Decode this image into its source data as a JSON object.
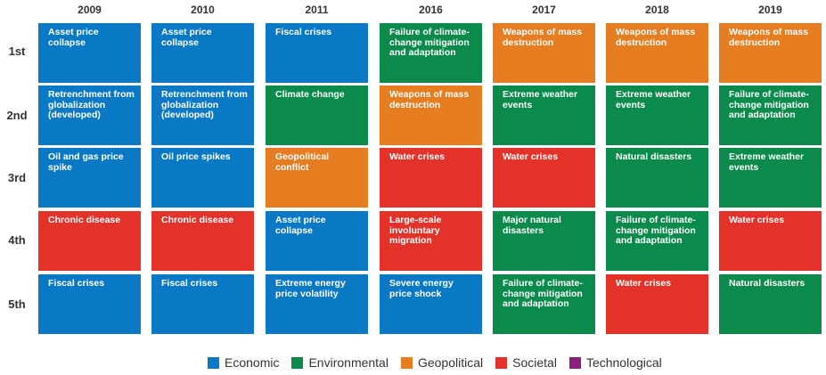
{
  "chart_data": {
    "type": "table",
    "title": "",
    "years": [
      "2009",
      "2010",
      "2011",
      "2016",
      "2017",
      "2018",
      "2019"
    ],
    "ranks": [
      "1st",
      "2nd",
      "3rd",
      "4th",
      "5th"
    ],
    "categories": {
      "Economic": "#0a79c5",
      "Environmental": "#0a8b4c",
      "Geopolitical": "#e77d21",
      "Societal": "#e2322a",
      "Technological": "#8b1f7c"
    },
    "legend": [
      "Economic",
      "Environmental",
      "Geopolitical",
      "Societal",
      "Technological"
    ],
    "grid": [
      [
        {
          "label": "Asset price collapse",
          "category": "Economic"
        },
        {
          "label": "Retrenchment from globalization (developed)",
          "category": "Economic"
        },
        {
          "label": "Oil and gas price spike",
          "category": "Economic"
        },
        {
          "label": "Chronic disease",
          "category": "Societal"
        },
        {
          "label": "Fiscal crises",
          "category": "Economic"
        }
      ],
      [
        {
          "label": "Asset price collapse",
          "category": "Economic"
        },
        {
          "label": "Retrenchment from globalization (developed)",
          "category": "Economic"
        },
        {
          "label": "Oil price spikes",
          "category": "Economic"
        },
        {
          "label": "Chronic disease",
          "category": "Societal"
        },
        {
          "label": "Fiscal crises",
          "category": "Economic"
        }
      ],
      [
        {
          "label": "Fiscal crises",
          "category": "Economic"
        },
        {
          "label": "Climate change",
          "category": "Environmental"
        },
        {
          "label": "Geopolitical conflict",
          "category": "Geopolitical"
        },
        {
          "label": "Asset price collapse",
          "category": "Economic"
        },
        {
          "label": "Extreme energy price volatility",
          "category": "Economic"
        }
      ],
      [
        {
          "label": "Failure of climate-change mitigation and adaptation",
          "category": "Environmental"
        },
        {
          "label": "Weapons of mass destruction",
          "category": "Geopolitical"
        },
        {
          "label": "Water crises",
          "category": "Societal"
        },
        {
          "label": "Large-scale involuntary migration",
          "category": "Societal"
        },
        {
          "label": "Severe energy price shock",
          "category": "Economic"
        }
      ],
      [
        {
          "label": "Weapons of mass destruction",
          "category": "Geopolitical"
        },
        {
          "label": "Extreme weather events",
          "category": "Environmental"
        },
        {
          "label": "Water crises",
          "category": "Societal"
        },
        {
          "label": "Major natural disasters",
          "category": "Environmental"
        },
        {
          "label": "Failure of climate-change mitigation and adaptation",
          "category": "Environmental"
        }
      ],
      [
        {
          "label": "Weapons of mass destruction",
          "category": "Geopolitical"
        },
        {
          "label": "Extreme weather events",
          "category": "Environmental"
        },
        {
          "label": "Natural disasters",
          "category": "Environmental"
        },
        {
          "label": "Failure of climate-change mitigation and adaptation",
          "category": "Environmental"
        },
        {
          "label": "Water crises",
          "category": "Societal"
        }
      ],
      [
        {
          "label": "Weapons of mass destruction",
          "category": "Geopolitical"
        },
        {
          "label": "Failure of climate-change mitigation and adaptation",
          "category": "Environmental"
        },
        {
          "label": "Extreme weather events",
          "category": "Environmental"
        },
        {
          "label": "Water crises",
          "category": "Societal"
        },
        {
          "label": "Natural disasters",
          "category": "Environmental"
        }
      ]
    ]
  }
}
